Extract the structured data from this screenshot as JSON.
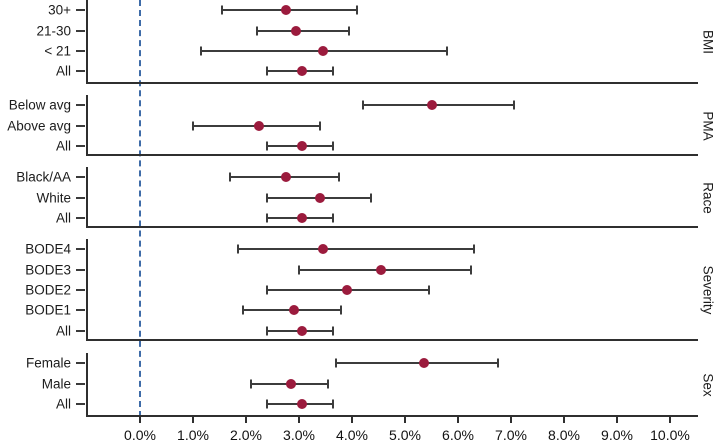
{
  "chart_data": {
    "type": "forest",
    "description": "Forest plot of estimated rates with confidence intervals by subgroup",
    "unit": "%",
    "x_axis": {
      "tick_labels": [
        "0.0%",
        "1.0%",
        "2.0%",
        "3.0%",
        "4.0%",
        "5.0%",
        "6.0%",
        "7.0%",
        "8.0%",
        "9.0%",
        "10.0%"
      ],
      "tick_values": [
        0,
        1,
        2,
        3,
        4,
        5,
        6,
        7,
        8,
        9,
        10
      ],
      "range": [
        0,
        10
      ],
      "zero_reference_line": 0.0
    },
    "groups": [
      {
        "name": "BMI",
        "rows": [
          {
            "label": "30+",
            "est": 2.75,
            "lo": 1.55,
            "hi": 4.1
          },
          {
            "label": "21-30",
            "est": 2.95,
            "lo": 2.2,
            "hi": 3.95
          },
          {
            "label": "< 21",
            "est": 3.45,
            "lo": 1.15,
            "hi": 5.8
          },
          {
            "label": "All",
            "est": 3.05,
            "lo": 2.4,
            "hi": 3.65
          }
        ]
      },
      {
        "name": "PMA",
        "rows": [
          {
            "label": "Below avg",
            "est": 5.5,
            "lo": 4.2,
            "hi": 7.05
          },
          {
            "label": "Above avg",
            "est": 2.25,
            "lo": 1.0,
            "hi": 3.4
          },
          {
            "label": "All",
            "est": 3.05,
            "lo": 2.4,
            "hi": 3.65
          }
        ]
      },
      {
        "name": "Race",
        "rows": [
          {
            "label": "Black/AA",
            "est": 2.75,
            "lo": 1.7,
            "hi": 3.75
          },
          {
            "label": "White",
            "est": 3.4,
            "lo": 2.4,
            "hi": 4.35
          },
          {
            "label": "All",
            "est": 3.05,
            "lo": 2.4,
            "hi": 3.65
          }
        ]
      },
      {
        "name": "Severity",
        "rows": [
          {
            "label": "BODE4",
            "est": 3.45,
            "lo": 1.85,
            "hi": 6.3
          },
          {
            "label": "BODE3",
            "est": 4.55,
            "lo": 3.0,
            "hi": 6.25
          },
          {
            "label": "BODE2",
            "est": 3.9,
            "lo": 2.4,
            "hi": 5.45
          },
          {
            "label": "BODE1",
            "est": 2.9,
            "lo": 1.95,
            "hi": 3.8
          },
          {
            "label": "All",
            "est": 3.05,
            "lo": 2.4,
            "hi": 3.65
          }
        ]
      },
      {
        "name": "Sex",
        "rows": [
          {
            "label": "Female",
            "est": 5.35,
            "lo": 3.7,
            "hi": 6.75
          },
          {
            "label": "Male",
            "est": 2.85,
            "lo": 2.1,
            "hi": 3.55
          },
          {
            "label": "All",
            "est": 3.05,
            "lo": 2.4,
            "hi": 3.65
          }
        ]
      }
    ],
    "colors": {
      "marker": "#9b1b3d",
      "ci_line": "#3c3c3c",
      "zero_line": "#3e6ba8",
      "panel_border": "#2f2f2f",
      "text": "#1c1c1c"
    },
    "legend": null,
    "grid": false
  }
}
